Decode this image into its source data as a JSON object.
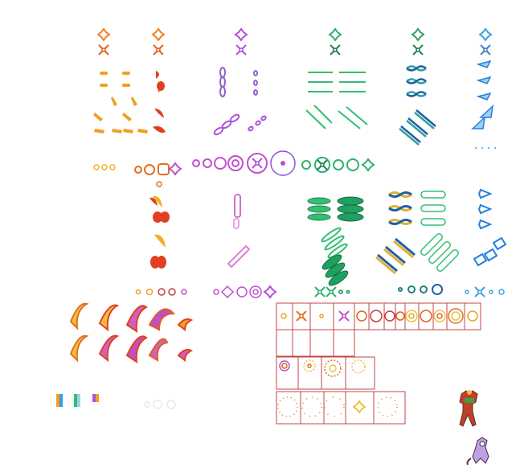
{
  "sheet": {
    "background": "#ffffff",
    "palette": {
      "fire_orange": "#f0a020",
      "fire_red": "#e04020",
      "fire_yellow": "#ffe060",
      "violet": "#b050e0",
      "pink": "#e070d0",
      "green": "#30c070",
      "dark_green": "#208050",
      "teal": "#30a0a0",
      "gold": "#e0b030",
      "ice_blue": "#40a0e0",
      "light_blue": "#a0d0f0",
      "guide_red": "#c44444"
    },
    "sections": [
      {
        "name": "fire-projectiles",
        "color": "#f0a020"
      },
      {
        "name": "violet-projectiles",
        "color": "#b050e0"
      },
      {
        "name": "green-lasers",
        "color": "#30c070"
      },
      {
        "name": "twisted-beams",
        "color": "#30a0a0"
      },
      {
        "name": "ice-shards",
        "color": "#40a0e0"
      },
      {
        "name": "flame-slashes",
        "color": "#e04020"
      },
      {
        "name": "frame-grid",
        "color": "#c44444"
      },
      {
        "name": "characters",
        "color": "#c0402a"
      }
    ]
  }
}
